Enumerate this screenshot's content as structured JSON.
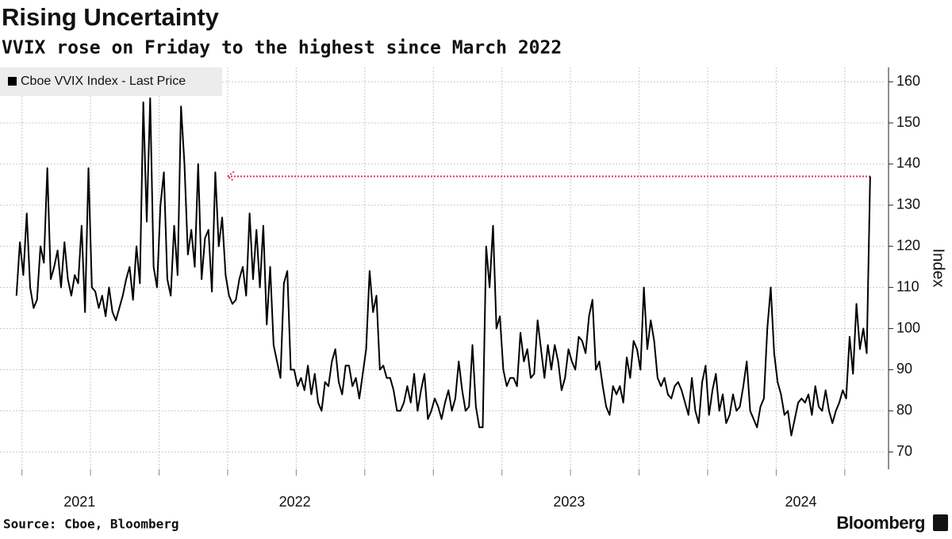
{
  "chart_data": {
    "type": "line",
    "title": "Rising Uncertainty",
    "subtitle": "VVIX rose on Friday to the highest since March 2022",
    "source": "Source: Cboe, Bloomberg",
    "brand": "Bloomberg",
    "y_label": "Index",
    "xlim": [
      2021.42,
      2024.645
    ],
    "ylim": [
      65.8,
      163.5
    ],
    "yticks": [
      70,
      80,
      90,
      100,
      110,
      120,
      130,
      140,
      150,
      160
    ],
    "xticks": [
      {
        "value": 2021.71,
        "label": "2021"
      },
      {
        "value": 2022.495,
        "label": "2022"
      },
      {
        "value": 2023.495,
        "label": "2023"
      },
      {
        "value": 2024.34,
        "label": "2024"
      }
    ],
    "xgrid": [
      2021.5,
      2021.75,
      2022,
      2022.25,
      2022.5,
      2022.75,
      2023,
      2023.25,
      2023.5,
      2023.75,
      2024,
      2024.25,
      2024.5
    ],
    "grid": true,
    "legend": "top-left",
    "reference_arrow": {
      "x": [
        2022.25,
        2024.5925
      ],
      "y": 137,
      "color": "#e0304f"
    },
    "x": [
      2021.48,
      2021.4925,
      2021.505,
      2021.5175,
      2021.53,
      2021.5425,
      2021.555,
      2021.5675,
      2021.58,
      2021.5925,
      2021.605,
      2021.6175,
      2021.63,
      2021.6425,
      2021.655,
      2021.6675,
      2021.68,
      2021.6925,
      2021.705,
      2021.7175,
      2021.73,
      2021.7425,
      2021.755,
      2021.7675,
      2021.78,
      2021.7925,
      2021.805,
      2021.8175,
      2021.83,
      2021.8425,
      2021.855,
      2021.8675,
      2021.88,
      2021.8925,
      2021.905,
      2021.9175,
      2021.93,
      2021.9425,
      2021.955,
      2021.9675,
      2021.98,
      2021.9925,
      2022.005,
      2022.0175,
      2022.03,
      2022.0425,
      2022.055,
      2022.0675,
      2022.08,
      2022.0925,
      2022.105,
      2022.1175,
      2022.13,
      2022.1425,
      2022.155,
      2022.1675,
      2022.18,
      2022.1925,
      2022.205,
      2022.2175,
      2022.23,
      2022.2425,
      2022.255,
      2022.2675,
      2022.28,
      2022.2925,
      2022.305,
      2022.3175,
      2022.33,
      2022.3425,
      2022.355,
      2022.3675,
      2022.38,
      2022.3925,
      2022.405,
      2022.4175,
      2022.43,
      2022.4425,
      2022.455,
      2022.4675,
      2022.48,
      2022.4925,
      2022.505,
      2022.5175,
      2022.53,
      2022.5425,
      2022.555,
      2022.5675,
      2022.58,
      2022.5925,
      2022.605,
      2022.6175,
      2022.63,
      2022.6425,
      2022.655,
      2022.6675,
      2022.68,
      2022.6925,
      2022.705,
      2022.7175,
      2022.73,
      2022.7425,
      2022.755,
      2022.7675,
      2022.78,
      2022.7925,
      2022.805,
      2022.8175,
      2022.83,
      2022.8425,
      2022.855,
      2022.8675,
      2022.88,
      2022.8925,
      2022.905,
      2022.9175,
      2022.93,
      2022.9425,
      2022.955,
      2022.9675,
      2022.98,
      2022.9925,
      2023.005,
      2023.0175,
      2023.03,
      2023.0425,
      2023.055,
      2023.0675,
      2023.08,
      2023.0925,
      2023.105,
      2023.1175,
      2023.13,
      2023.1425,
      2023.155,
      2023.1675,
      2023.18,
      2023.1925,
      2023.205,
      2023.2175,
      2023.23,
      2023.2425,
      2023.255,
      2023.2675,
      2023.28,
      2023.2925,
      2023.305,
      2023.3175,
      2023.33,
      2023.3425,
      2023.355,
      2023.3675,
      2023.38,
      2023.3925,
      2023.405,
      2023.4175,
      2023.43,
      2023.4425,
      2023.455,
      2023.4675,
      2023.48,
      2023.4925,
      2023.505,
      2023.5175,
      2023.53,
      2023.5425,
      2023.555,
      2023.5675,
      2023.58,
      2023.5925,
      2023.605,
      2023.6175,
      2023.63,
      2023.6425,
      2023.655,
      2023.6675,
      2023.68,
      2023.6925,
      2023.705,
      2023.7175,
      2023.73,
      2023.7425,
      2023.755,
      2023.7675,
      2023.78,
      2023.7925,
      2023.805,
      2023.8175,
      2023.83,
      2023.8425,
      2023.855,
      2023.8675,
      2023.88,
      2023.8925,
      2023.905,
      2023.9175,
      2023.93,
      2023.9425,
      2023.955,
      2023.9675,
      2023.98,
      2023.9925,
      2024.005,
      2024.0175,
      2024.03,
      2024.0425,
      2024.055,
      2024.0675,
      2024.08,
      2024.0925,
      2024.105,
      2024.1175,
      2024.13,
      2024.1425,
      2024.155,
      2024.1675,
      2024.18,
      2024.1925,
      2024.205,
      2024.2175,
      2024.23,
      2024.2425,
      2024.255,
      2024.2675,
      2024.28,
      2024.2925,
      2024.305,
      2024.3175,
      2024.33,
      2024.3425,
      2024.355,
      2024.3675,
      2024.38,
      2024.3925,
      2024.405,
      2024.4175,
      2024.43,
      2024.4425,
      2024.455,
      2024.4675,
      2024.48,
      2024.4925,
      2024.505,
      2024.5175,
      2024.53,
      2024.5425,
      2024.555,
      2024.5675,
      2024.58,
      2024.5925
    ],
    "series": [
      {
        "name": "Cboe VVIX Index - Last Price",
        "color": "#000000",
        "values": [
          108,
          121,
          113,
          128,
          110,
          105,
          107,
          120,
          116,
          139,
          112,
          115,
          119,
          110,
          121,
          112,
          108,
          113,
          111,
          125,
          104,
          139,
          110,
          109,
          105,
          108,
          103,
          110,
          104,
          102,
          105,
          108,
          112,
          115,
          107,
          120,
          111,
          155,
          126,
          156,
          115,
          110,
          130,
          138,
          112,
          108,
          125,
          113,
          154,
          140,
          118,
          124,
          115,
          140,
          112,
          122,
          124,
          109,
          138,
          120,
          127,
          113,
          108,
          106,
          107,
          112,
          115,
          108,
          128,
          112,
          124,
          110,
          125,
          101,
          115,
          96,
          92,
          88,
          111,
          114,
          90,
          90,
          86,
          88,
          85,
          91,
          84,
          89,
          82,
          80,
          87,
          86,
          92,
          95,
          87,
          84,
          91,
          91,
          86,
          88,
          83,
          89,
          95,
          114,
          104,
          108,
          90,
          91,
          88,
          88,
          85,
          80,
          80,
          82,
          86,
          82,
          89,
          80,
          85,
          89,
          78,
          80,
          83,
          81,
          78,
          82,
          85,
          80,
          83,
          92,
          85,
          80,
          81,
          96,
          81,
          76,
          76,
          120,
          110,
          125,
          100,
          103,
          90,
          86,
          88,
          88,
          86,
          99,
          92,
          95,
          88,
          89,
          102,
          95,
          88,
          96,
          90,
          96,
          92,
          85,
          88,
          95,
          92,
          90,
          98,
          97,
          94,
          103,
          107,
          90,
          92,
          86,
          81,
          79,
          86,
          84,
          86,
          82,
          93,
          88,
          97,
          95,
          90,
          110,
          95,
          102,
          97,
          88,
          86,
          88,
          84,
          83,
          86,
          87,
          85,
          82,
          79,
          88,
          80,
          77,
          87,
          91,
          79,
          85,
          89,
          80,
          84,
          77,
          79,
          84,
          80,
          81,
          86,
          92,
          80,
          78,
          76,
          81,
          83,
          100,
          110,
          94,
          87,
          84,
          79,
          80,
          74,
          78,
          82,
          83,
          82,
          84,
          79,
          86,
          81,
          80,
          85,
          80,
          77,
          80,
          82,
          85,
          83,
          98,
          89,
          106,
          95,
          100,
          94,
          137
        ]
      }
    ]
  }
}
